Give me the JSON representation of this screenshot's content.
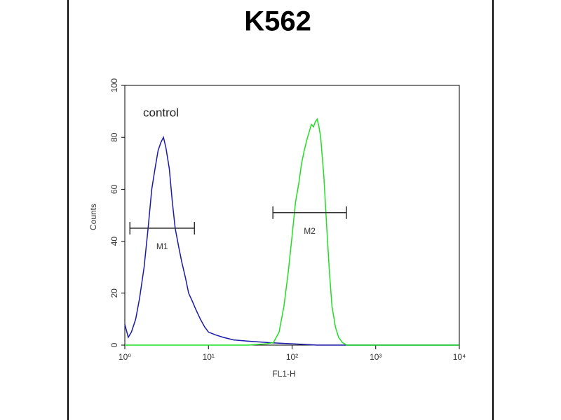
{
  "chart_data": {
    "type": "line",
    "title": "K562",
    "xlabel": "FL1-H",
    "ylabel": "Counts",
    "xscale": "log",
    "xlim": [
      1,
      10000
    ],
    "xticks": [
      {
        "value": 1,
        "label": "10⁰"
      },
      {
        "value": 10,
        "label": "10¹"
      },
      {
        "value": 100,
        "label": "10²"
      },
      {
        "value": 1000,
        "label": "10³"
      },
      {
        "value": 10000,
        "label": "10⁴"
      }
    ],
    "ylim": [
      0,
      100
    ],
    "yticks": [
      0,
      20,
      40,
      60,
      80,
      100
    ],
    "annotations": [
      "control"
    ],
    "markers": [
      {
        "label": "M1",
        "range": [
          1.15,
          6.8
        ],
        "y": 45
      },
      {
        "label": "M2",
        "range": [
          59,
          447
        ],
        "y": 51
      }
    ],
    "series": [
      {
        "color": "#1a1aa8",
        "x": [
          1,
          1.1,
          1.2,
          1.35,
          1.5,
          1.7,
          1.9,
          2.1,
          2.3,
          2.5,
          2.7,
          2.9,
          3.1,
          3.4,
          3.7,
          4,
          4.4,
          4.8,
          5.3,
          5.8,
          6.4,
          7,
          8,
          9,
          10,
          12,
          15,
          20,
          30,
          50,
          100,
          200,
          500,
          1000,
          10000
        ],
        "values": [
          8,
          3,
          5,
          10,
          18,
          30,
          45,
          60,
          68,
          75,
          78,
          80,
          76,
          68,
          55,
          45,
          38,
          32,
          26,
          20,
          17,
          14,
          10,
          7,
          5,
          4,
          3,
          2,
          1.5,
          1,
          0.5,
          0,
          0,
          0,
          0
        ]
      },
      {
        "color": "#22dd22",
        "x": [
          1,
          10,
          30,
          50,
          60,
          70,
          80,
          90,
          100,
          110,
          120,
          130,
          140,
          150,
          160,
          170,
          180,
          190,
          200,
          210,
          220,
          240,
          260,
          280,
          300,
          330,
          360,
          400,
          450,
          600,
          10000
        ],
        "values": [
          0,
          0,
          0,
          0.5,
          1,
          5,
          15,
          28,
          42,
          55,
          62,
          70,
          75,
          79,
          82,
          85,
          84,
          86,
          87,
          84,
          80,
          65,
          45,
          28,
          15,
          7,
          3,
          1,
          0,
          0,
          0
        ]
      }
    ]
  }
}
